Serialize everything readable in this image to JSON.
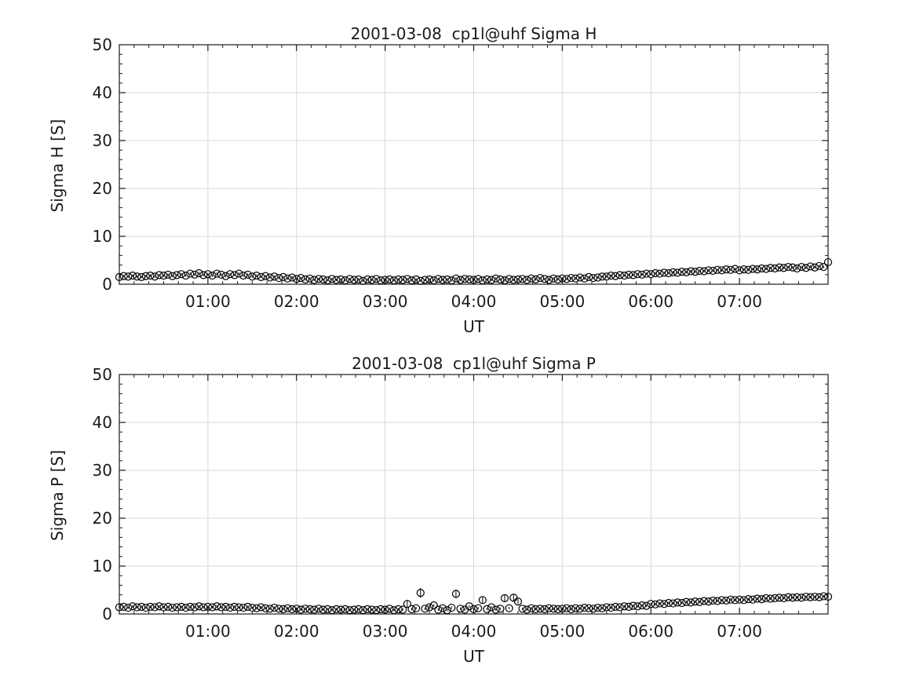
{
  "figure": {
    "background": "#ffffff"
  },
  "chart_data": [
    {
      "type": "scatter",
      "subtype": "errorbar-open-circles",
      "title": "2001-03-08  cp1l@uhf Sigma H",
      "ylabel": "Sigma H [S]",
      "xlabel": "UT",
      "ylim": [
        0,
        50
      ],
      "yticks": [
        0,
        10,
        20,
        30,
        40,
        50
      ],
      "y_minor_step": 2,
      "xlim_hours": [
        0,
        8
      ],
      "xticks": [
        {
          "hours": 1,
          "label": "01:00"
        },
        {
          "hours": 2,
          "label": "02:00"
        },
        {
          "hours": 3,
          "label": "03:00"
        },
        {
          "hours": 4,
          "label": "04:00"
        },
        {
          "hours": 5,
          "label": "05:00"
        },
        {
          "hours": 6,
          "label": "06:00"
        },
        {
          "hours": 7,
          "label": "07:00"
        }
      ],
      "x_minor_step_minutes": 10,
      "grid": true,
      "legend": null,
      "colors": {
        "marker": "#000000",
        "grid": "#d8d8d8",
        "axis": "#1a1a1a"
      },
      "series": {
        "name": "Sigma H",
        "t0_minutes": 0,
        "dt_minutes": 3,
        "err_default": 0.25,
        "err_overrides": {
          "160": 0.4
        },
        "values": [
          1.5,
          1.7,
          1.6,
          1.8,
          1.6,
          1.5,
          1.7,
          1.8,
          1.6,
          1.9,
          1.8,
          2.0,
          1.7,
          1.9,
          2.1,
          1.8,
          2.2,
          2.0,
          2.3,
          1.9,
          2.1,
          1.8,
          2.2,
          2.0,
          1.7,
          2.1,
          1.9,
          2.2,
          1.8,
          2.0,
          1.6,
          1.8,
          1.5,
          1.7,
          1.4,
          1.6,
          1.3,
          1.5,
          1.2,
          1.4,
          1.1,
          1.3,
          1.0,
          1.2,
          0.9,
          1.1,
          1.0,
          0.8,
          1.1,
          0.9,
          1.0,
          0.8,
          1.1,
          0.9,
          1.0,
          0.7,
          1.0,
          0.9,
          1.1,
          0.8,
          0.9,
          1.0,
          0.8,
          1.0,
          0.9,
          1.1,
          0.8,
          1.0,
          0.7,
          0.9,
          1.0,
          0.8,
          1.1,
          0.9,
          1.0,
          0.8,
          1.2,
          0.9,
          1.1,
          1.0,
          0.9,
          1.1,
          0.8,
          1.0,
          0.9,
          1.2,
          1.0,
          0.8,
          1.1,
          0.9,
          1.0,
          1.1,
          0.9,
          1.2,
          1.0,
          1.3,
          1.1,
          0.9,
          1.2,
          1.0,
          1.2,
          1.1,
          1.3,
          1.2,
          1.4,
          1.2,
          1.5,
          1.3,
          1.4,
          1.6,
          1.6,
          1.8,
          1.7,
          1.9,
          1.8,
          2.0,
          1.9,
          2.1,
          2.0,
          2.2,
          2.1,
          2.3,
          2.2,
          2.4,
          2.3,
          2.5,
          2.4,
          2.6,
          2.5,
          2.7,
          2.6,
          2.8,
          2.7,
          2.9,
          2.8,
          3.0,
          2.9,
          3.1,
          3.0,
          3.2,
          2.9,
          3.1,
          3.0,
          3.2,
          3.1,
          3.3,
          3.2,
          3.4,
          3.3,
          3.5,
          3.4,
          3.6,
          3.5,
          3.3,
          3.6,
          3.4,
          3.7,
          3.5,
          3.8,
          3.6,
          4.6
        ]
      }
    },
    {
      "type": "scatter",
      "subtype": "errorbar-open-circles",
      "title": "2001-03-08  cp1l@uhf Sigma P",
      "ylabel": "Sigma P [S]",
      "xlabel": "UT",
      "ylim": [
        0,
        50
      ],
      "yticks": [
        0,
        10,
        20,
        30,
        40,
        50
      ],
      "y_minor_step": 2,
      "xlim_hours": [
        0,
        8
      ],
      "xticks": [
        {
          "hours": 1,
          "label": "01:00"
        },
        {
          "hours": 2,
          "label": "02:00"
        },
        {
          "hours": 3,
          "label": "03:00"
        },
        {
          "hours": 4,
          "label": "04:00"
        },
        {
          "hours": 5,
          "label": "05:00"
        },
        {
          "hours": 6,
          "label": "06:00"
        },
        {
          "hours": 7,
          "label": "07:00"
        }
      ],
      "x_minor_step_minutes": 10,
      "grid": true,
      "legend": null,
      "colors": {
        "marker": "#000000",
        "grid": "#d8d8d8",
        "axis": "#1a1a1a"
      },
      "series": {
        "name": "Sigma P",
        "t0_minutes": 0,
        "dt_minutes": 3,
        "err_default": 0.25,
        "err_overrides": {
          "65": 0.7,
          "68": 1.0,
          "70": 0.5,
          "76": 0.9,
          "82": 0.6,
          "87": 0.7,
          "89": 0.8,
          "90": 0.5
        },
        "values": [
          1.4,
          1.5,
          1.3,
          1.6,
          1.4,
          1.5,
          1.3,
          1.5,
          1.4,
          1.6,
          1.4,
          1.5,
          1.3,
          1.4,
          1.5,
          1.3,
          1.5,
          1.4,
          1.6,
          1.4,
          1.5,
          1.4,
          1.6,
          1.4,
          1.5,
          1.3,
          1.5,
          1.4,
          1.3,
          1.5,
          1.3,
          1.2,
          1.4,
          1.2,
          1.1,
          1.3,
          1.1,
          1.0,
          1.2,
          1.0,
          1.1,
          0.9,
          1.1,
          1.0,
          0.9,
          1.1,
          0.9,
          1.0,
          0.8,
          1.0,
          0.9,
          1.0,
          0.8,
          0.9,
          1.0,
          0.8,
          1.0,
          0.9,
          0.8,
          1.0,
          0.9,
          1.1,
          0.8,
          1.0,
          0.9,
          2.1,
          1.0,
          1.2,
          4.4,
          1.1,
          1.4,
          1.8,
          0.9,
          1.2,
          0.8,
          1.3,
          4.2,
          1.1,
          0.9,
          1.6,
          1.0,
          1.2,
          2.9,
          1.0,
          1.4,
          0.9,
          1.1,
          3.3,
          1.2,
          3.4,
          2.6,
          1.1,
          0.9,
          1.2,
          1.0,
          1.1,
          1.0,
          1.2,
          1.1,
          1.0,
          1.1,
          1.2,
          1.0,
          1.2,
          1.1,
          1.3,
          1.2,
          1.1,
          1.3,
          1.2,
          1.4,
          1.3,
          1.5,
          1.4,
          1.6,
          1.5,
          1.7,
          1.6,
          1.8,
          1.7,
          2.1,
          2.0,
          2.2,
          2.1,
          2.3,
          2.2,
          2.4,
          2.3,
          2.5,
          2.4,
          2.6,
          2.5,
          2.7,
          2.6,
          2.8,
          2.7,
          2.9,
          2.8,
          3.0,
          2.9,
          3.0,
          2.9,
          3.1,
          3.0,
          3.2,
          3.1,
          3.3,
          3.2,
          3.3,
          3.4,
          3.3,
          3.5,
          3.4,
          3.5,
          3.4,
          3.6,
          3.5,
          3.6,
          3.5,
          3.7,
          3.6
        ]
      }
    }
  ]
}
